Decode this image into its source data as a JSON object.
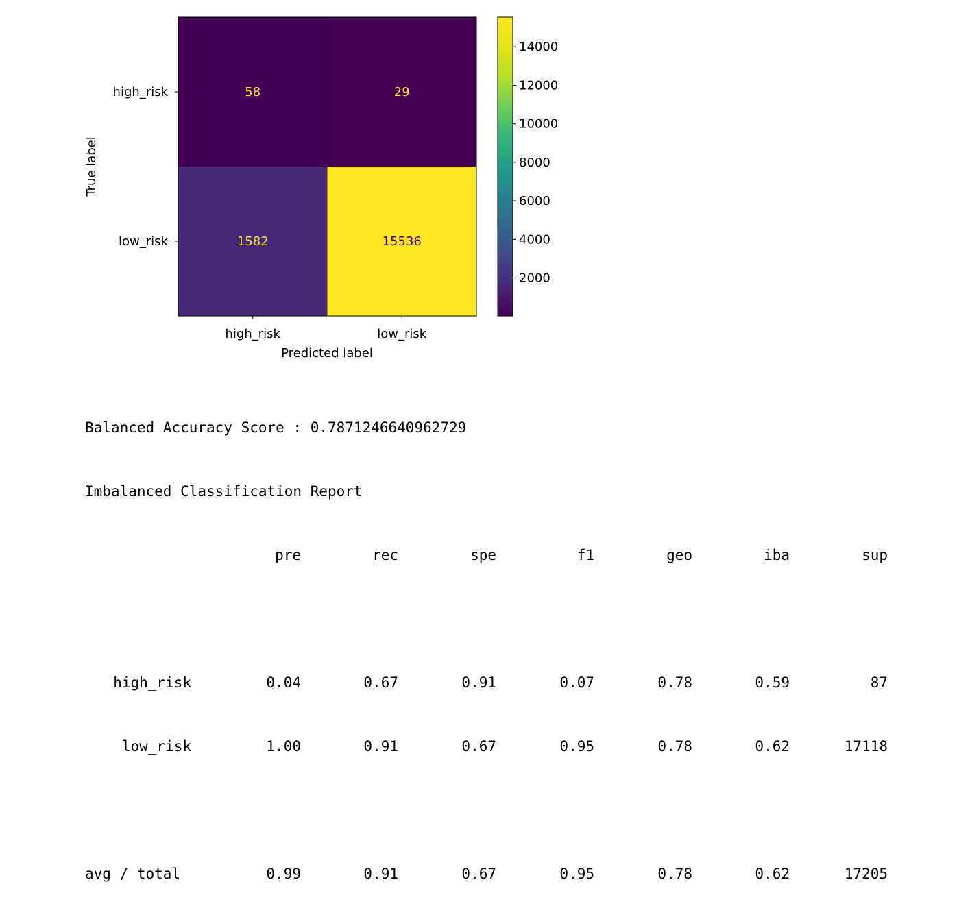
{
  "chart_data": {
    "type": "heatmap",
    "rows": [
      "high_risk",
      "low_risk"
    ],
    "columns": [
      "high_risk",
      "low_risk"
    ],
    "values": [
      [
        58,
        29
      ],
      [
        1582,
        15536
      ]
    ],
    "xlabel": "Predicted label",
    "ylabel": "True label",
    "colormap": "viridis",
    "colorbar": {
      "range": [
        29,
        15536
      ],
      "ticks": [
        2000,
        4000,
        6000,
        8000,
        10000,
        12000,
        14000
      ]
    },
    "cell_text_colors": {
      "light": "#fde725",
      "dark": "#440154"
    }
  },
  "report": {
    "balanced_accuracy_line": "Balanced Accuracy Score : 0.7871246640962729",
    "title": "Imbalanced Classification Report",
    "headers": [
      "pre",
      "rec",
      "spe",
      "f1",
      "geo",
      "iba",
      "sup"
    ],
    "rows": [
      {
        "label": "high_risk",
        "values": [
          "0.04",
          "0.67",
          "0.91",
          "0.07",
          "0.78",
          "0.59",
          "87"
        ]
      },
      {
        "label": "low_risk",
        "values": [
          "1.00",
          "0.91",
          "0.67",
          "0.95",
          "0.78",
          "0.62",
          "17118"
        ]
      }
    ],
    "total": {
      "label": "avg / total",
      "values": [
        "0.99",
        "0.91",
        "0.67",
        "0.95",
        "0.78",
        "0.62",
        "17205"
      ]
    }
  }
}
